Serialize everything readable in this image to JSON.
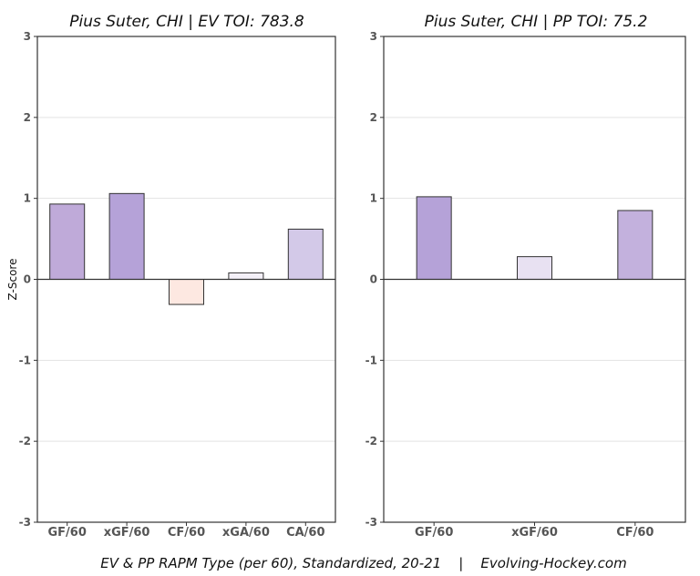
{
  "caption": "EV & PP RAPM Type (per 60), Standardized, 20-21    |    Evolving-Hockey.com",
  "chart_data": [
    {
      "type": "bar",
      "title": "Pius Suter, CHI  |  EV TOI: 783.8",
      "ylabel": "Z-Score",
      "xlabel": "",
      "ylim": [
        -3,
        3
      ],
      "yticks": [
        3,
        2,
        1,
        0,
        -1,
        -2,
        -3
      ],
      "grid": true,
      "categories": [
        "GF/60",
        "xGF/60",
        "CF/60",
        "xGA/60",
        "CA/60"
      ],
      "values": [
        0.93,
        1.06,
        -0.31,
        0.08,
        0.62
      ],
      "colors": [
        "#bfaad9",
        "#b5a2d8",
        "#fde8e1",
        "#f4f0f8",
        "#d3c9e8"
      ]
    },
    {
      "type": "bar",
      "title": "Pius Suter, CHI  |  PP TOI: 75.2",
      "ylabel": "",
      "xlabel": "",
      "ylim": [
        -3,
        3
      ],
      "yticks": [
        3,
        2,
        1,
        0,
        -1,
        -2,
        -3
      ],
      "grid": true,
      "categories": [
        "GF/60",
        "xGF/60",
        "CF/60"
      ],
      "values": [
        1.02,
        0.28,
        0.85
      ],
      "colors": [
        "#b5a2d8",
        "#e8e1f2",
        "#c3b1dd"
      ]
    }
  ]
}
